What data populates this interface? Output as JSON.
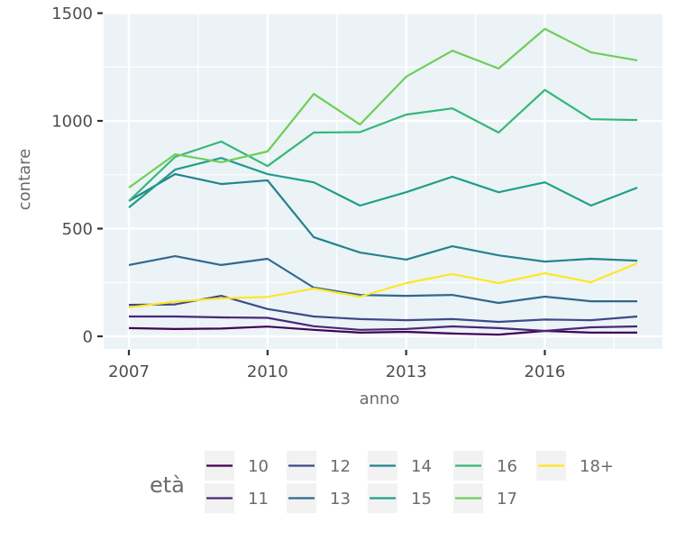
{
  "chart_data": {
    "type": "line",
    "title": "",
    "xlabel": "anno",
    "ylabel": "contare",
    "x": [
      2007,
      2008,
      2009,
      2010,
      2011,
      2012,
      2013,
      2014,
      2015,
      2016,
      2017,
      2018
    ],
    "xlim": [
      2007,
      2018
    ],
    "ylim": [
      -58,
      1502
    ],
    "x_ticks": [
      2007,
      2010,
      2013,
      2016
    ],
    "x_tick_labels": [
      "2007",
      "2010",
      "2013",
      "2016"
    ],
    "y_ticks": [
      0,
      500,
      1000,
      1500
    ],
    "y_tick_labels": [
      "0",
      "500",
      "1000",
      "1500"
    ],
    "grid": true,
    "legend": {
      "title": "età",
      "placement": "bottom"
    },
    "series": [
      {
        "name": "10",
        "color": "#440154",
        "values": [
          38,
          34,
          36,
          45,
          30,
          17,
          21,
          13,
          8,
          25,
          17,
          17
        ]
      },
      {
        "name": "11",
        "color": "#482878",
        "values": [
          92,
          92,
          88,
          86,
          47,
          30,
          34,
          46,
          38,
          25,
          42,
          46
        ]
      },
      {
        "name": "12",
        "color": "#3E4A89",
        "values": [
          146,
          148,
          188,
          127,
          92,
          80,
          75,
          80,
          67,
          78,
          75,
          92
        ]
      },
      {
        "name": "13",
        "color": "#31688E",
        "values": [
          331,
          372,
          331,
          360,
          226,
          192,
          188,
          192,
          155,
          184,
          163,
          163
        ]
      },
      {
        "name": "14",
        "color": "#26828E",
        "values": [
          628,
          753,
          707,
          724,
          460,
          389,
          356,
          418,
          376,
          347,
          360,
          351
        ]
      },
      {
        "name": "15",
        "color": "#1F9E89",
        "values": [
          598,
          774,
          828,
          753,
          715,
          607,
          669,
          741,
          669,
          715,
          607,
          690
        ]
      },
      {
        "name": "16",
        "color": "#35B779",
        "values": [
          628,
          833,
          904,
          790,
          946,
          948,
          1029,
          1058,
          946,
          1144,
          1008,
          1004
        ]
      },
      {
        "name": "17",
        "color": "#6ECE58",
        "values": [
          690,
          845,
          808,
          858,
          1125,
          983,
          1205,
          1326,
          1243,
          1427,
          1318,
          1281
        ]
      },
      {
        "name": "18+",
        "color": "#FDE725",
        "values": [
          134,
          161,
          176,
          183,
          222,
          184,
          247,
          289,
          247,
          293,
          251,
          339
        ]
      }
    ]
  }
}
